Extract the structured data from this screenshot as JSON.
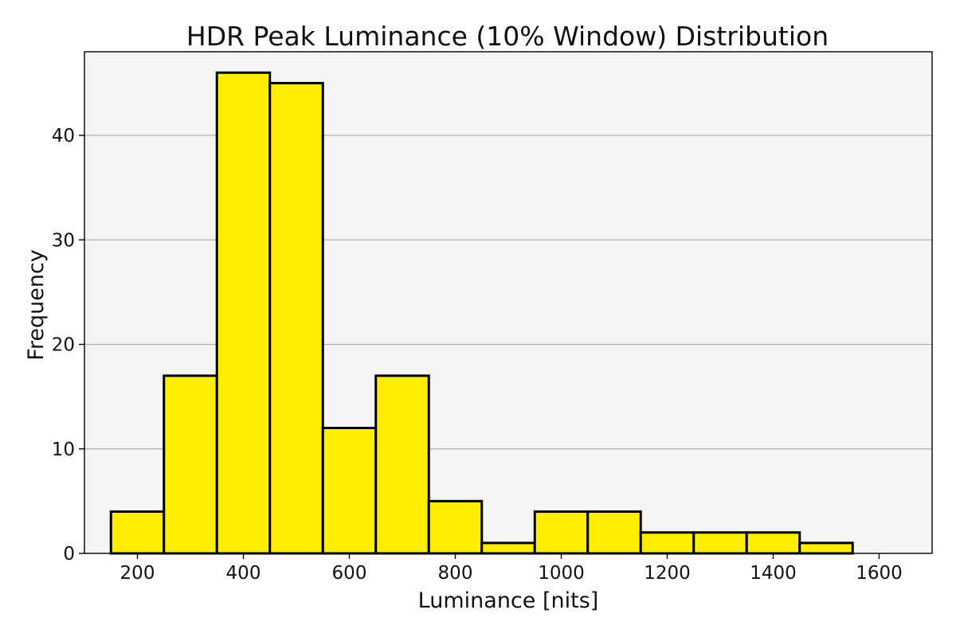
{
  "chart_data": {
    "type": "bar",
    "title": "HDR Peak Luminance (10% Window) Distribution",
    "xlabel": "Luminance [nits]",
    "ylabel": "Frequency",
    "bins": [
      {
        "start": 150,
        "end": 250,
        "count": 4
      },
      {
        "start": 250,
        "end": 350,
        "count": 17
      },
      {
        "start": 350,
        "end": 450,
        "count": 46
      },
      {
        "start": 450,
        "end": 550,
        "count": 45
      },
      {
        "start": 550,
        "end": 650,
        "count": 12
      },
      {
        "start": 650,
        "end": 750,
        "count": 17
      },
      {
        "start": 750,
        "end": 850,
        "count": 5
      },
      {
        "start": 850,
        "end": 950,
        "count": 1
      },
      {
        "start": 950,
        "end": 1050,
        "count": 4
      },
      {
        "start": 1050,
        "end": 1150,
        "count": 4
      },
      {
        "start": 1150,
        "end": 1250,
        "count": 2
      },
      {
        "start": 1250,
        "end": 1350,
        "count": 2
      },
      {
        "start": 1350,
        "end": 1450,
        "count": 2
      },
      {
        "start": 1450,
        "end": 1550,
        "count": 1
      }
    ],
    "xlim": [
      100,
      1700
    ],
    "ylim": [
      0,
      48
    ],
    "xticks": [
      200,
      400,
      600,
      800,
      1000,
      1200,
      1400,
      1600
    ],
    "yticks": [
      0,
      10,
      20,
      30,
      40
    ],
    "grid": "horizontal",
    "colors": {
      "bar_fill": "#ffee00",
      "bar_edge": "#000000",
      "plot_background": "#f4f4f4",
      "grid": "#b0b0b0"
    }
  }
}
